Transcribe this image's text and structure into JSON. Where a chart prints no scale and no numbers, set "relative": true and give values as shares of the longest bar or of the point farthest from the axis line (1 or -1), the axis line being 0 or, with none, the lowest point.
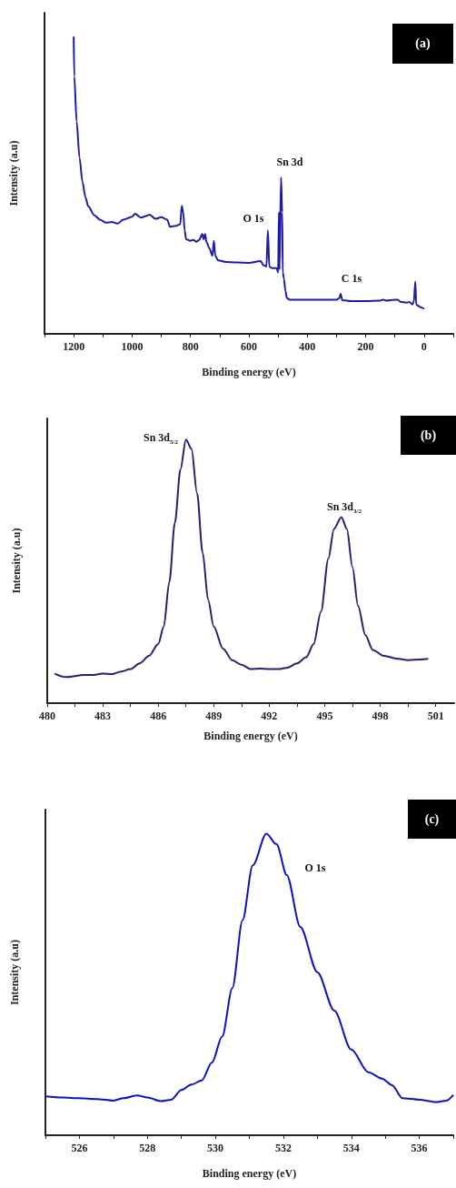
{
  "chart_data": [
    {
      "type": "line",
      "relative": true,
      "xlabel": "Binding energy (eV)",
      "ylabel": "Intensity (a.u)",
      "xlim": [
        1300,
        -100
      ],
      "xticks": [
        {
          "value": 1300,
          "label": null
        },
        1200,
        {
          "value": 1100,
          "label": null
        },
        1000,
        {
          "value": 900,
          "label": null
        },
        800,
        {
          "value": 700,
          "label": null
        },
        600,
        {
          "value": 500,
          "label": null
        },
        400,
        {
          "value": 300,
          "label": null
        },
        200,
        {
          "value": 100,
          "label": null
        },
        0,
        {
          "value": -100,
          "label": null
        }
      ],
      "annotations": [
        "(a)",
        "Sn 3d",
        "O 1s",
        "C 1s"
      ],
      "series": [
        {
          "color": "#1c1ca8",
          "x": [
            1200,
            1198,
            1190,
            1180,
            1170,
            1160,
            1150,
            1130,
            1110,
            1090,
            1070,
            1050,
            1030,
            1000,
            990,
            970,
            950,
            940,
            920,
            900,
            880,
            870,
            850,
            835,
            830,
            825,
            820,
            815,
            800,
            790,
            780,
            770,
            760,
            755,
            750,
            745,
            735,
            725,
            720,
            715,
            705,
            680,
            640,
            600,
            560,
            550,
            540,
            535,
            530,
            520,
            505,
            500,
            497,
            495,
            490,
            486,
            484,
            480,
            475,
            470,
            460,
            400,
            300,
            290,
            286,
            280,
            250,
            200,
            150,
            140,
            130,
            100,
            90,
            80,
            60,
            50,
            40,
            35,
            30,
            27,
            20,
            10,
            0
          ],
          "values": [
            1.0,
            0.866,
            0.714,
            0.592,
            0.511,
            0.46,
            0.429,
            0.399,
            0.384,
            0.374,
            0.376,
            0.371,
            0.384,
            0.394,
            0.404,
            0.391,
            0.397,
            0.401,
            0.387,
            0.392,
            0.384,
            0.36,
            0.363,
            0.369,
            0.431,
            0.409,
            0.348,
            0.318,
            0.313,
            0.316,
            0.31,
            0.316,
            0.336,
            0.318,
            0.336,
            0.308,
            0.287,
            0.262,
            0.313,
            0.262,
            0.247,
            0.242,
            0.24,
            0.239,
            0.245,
            0.231,
            0.226,
            0.348,
            0.226,
            0.221,
            0.221,
            0.206,
            0.409,
            0.216,
            0.526,
            0.409,
            0.206,
            0.186,
            0.145,
            0.12,
            0.115,
            0.115,
            0.115,
            0.12,
            0.135,
            0.113,
            0.11,
            0.11,
            0.112,
            0.115,
            0.112,
            0.115,
            0.115,
            0.107,
            0.105,
            0.107,
            0.099,
            0.109,
            0.176,
            0.099,
            0.094,
            0.089,
            0.084
          ]
        }
      ]
    },
    {
      "type": "line",
      "relative": true,
      "xlabel": "Binding energy (eV)",
      "ylabel": "Intensity (a.u)",
      "xlim": [
        480,
        502
      ],
      "xticks": [
        480,
        {
          "value": 481.5,
          "label": null
        },
        483,
        {
          "value": 484.5,
          "label": null
        },
        486,
        {
          "value": 487.5,
          "label": null
        },
        489,
        {
          "value": 490.5,
          "label": null
        },
        492,
        {
          "value": 493.5,
          "label": null
        },
        495,
        {
          "value": 496.5,
          "label": null
        },
        498,
        {
          "value": 499.5,
          "label": null
        },
        501
      ],
      "annotations": [
        "(b)",
        "Sn 3d$_{5/2}$",
        "Sn 3d$_{3/2}$"
      ],
      "series": [
        {
          "color": "#232070",
          "x": [
            480.4,
            481,
            482,
            482.5,
            483,
            483.5,
            484,
            484.5,
            485,
            485.5,
            486,
            486.3,
            486.6,
            486.9,
            487.2,
            487.5,
            487.8,
            488.1,
            488.4,
            488.7,
            489,
            489.5,
            490,
            490.5,
            491,
            491.5,
            492,
            492.5,
            493,
            493.5,
            494,
            494.4,
            494.8,
            495.2,
            495.5,
            495.9,
            496.2,
            496.5,
            496.8,
            497.2,
            497.6,
            498.2,
            499,
            499.5,
            500.2,
            500.6
          ],
          "values": [
            0.112,
            0.099,
            0.107,
            0.107,
            0.112,
            0.11,
            0.12,
            0.129,
            0.151,
            0.179,
            0.224,
            0.291,
            0.46,
            0.684,
            0.886,
            1.0,
            0.964,
            0.796,
            0.572,
            0.392,
            0.291,
            0.207,
            0.163,
            0.146,
            0.129,
            0.131,
            0.129,
            0.129,
            0.135,
            0.151,
            0.174,
            0.224,
            0.348,
            0.549,
            0.661,
            0.706,
            0.661,
            0.516,
            0.37,
            0.258,
            0.202,
            0.179,
            0.168,
            0.163,
            0.166,
            0.168
          ]
        }
      ]
    },
    {
      "type": "line",
      "relative": true,
      "xlabel": "Binding energy (eV)",
      "ylabel": "Intensity (a.u)",
      "xlim": [
        525,
        537
      ],
      "xticks": [
        {
          "value": 525,
          "label": null
        },
        526,
        {
          "value": 527,
          "label": null
        },
        528,
        {
          "value": 529,
          "label": null
        },
        530,
        {
          "value": 531,
          "label": null
        },
        532,
        {
          "value": 533,
          "label": null
        },
        534,
        {
          "value": 535,
          "label": null
        },
        536,
        {
          "value": 537,
          "label": null
        }
      ],
      "annotations": [
        "(c)",
        "O 1s"
      ],
      "series": [
        {
          "color": "#1010c0",
          "x": [
            525,
            525.5,
            526,
            526.5,
            527,
            527.3,
            527.7,
            528,
            528.4,
            528.7,
            529,
            529.3,
            529.6,
            529.9,
            530.2,
            530.5,
            530.8,
            531.1,
            531.5,
            531.8,
            532.1,
            532.5,
            533,
            533.5,
            534,
            534.5,
            534.9,
            535.2,
            535.5,
            536,
            536.5,
            536.8,
            537
          ],
          "values": [
            0.129,
            0.125,
            0.123,
            0.12,
            0.115,
            0.123,
            0.132,
            0.125,
            0.113,
            0.118,
            0.15,
            0.168,
            0.182,
            0.241,
            0.327,
            0.488,
            0.713,
            0.895,
            1.0,
            0.965,
            0.863,
            0.691,
            0.541,
            0.413,
            0.284,
            0.209,
            0.188,
            0.166,
            0.123,
            0.118,
            0.11,
            0.115,
            0.134
          ]
        }
      ]
    }
  ]
}
